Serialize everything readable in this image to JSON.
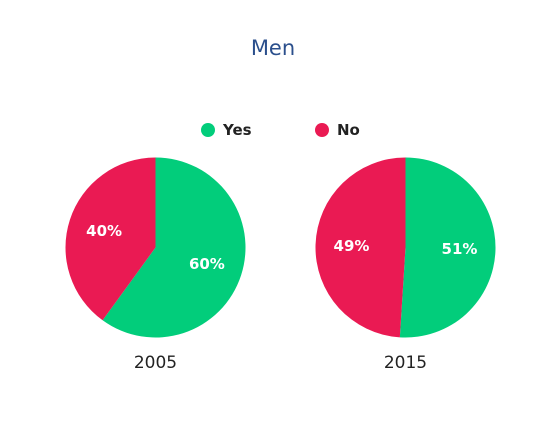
{
  "chart_data": {
    "type": "pie",
    "title": "Men",
    "legend_position": "top-center",
    "series_labels": [
      "Yes",
      "No"
    ],
    "colors": {
      "Yes": "#02cd7b",
      "No": "#ea1a53"
    },
    "pies": [
      {
        "label": "2005",
        "slices": [
          {
            "name": "Yes",
            "value": 60,
            "label": "60%"
          },
          {
            "name": "No",
            "value": 40,
            "label": "40%"
          }
        ]
      },
      {
        "label": "2015",
        "slices": [
          {
            "name": "Yes",
            "value": 51,
            "label": "51%"
          },
          {
            "name": "No",
            "value": 49,
            "label": "49%"
          }
        ]
      }
    ]
  }
}
